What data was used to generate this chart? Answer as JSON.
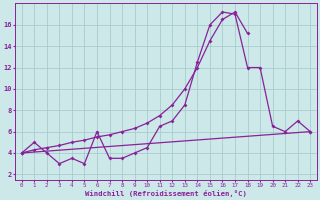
{
  "xlabel": "Windchill (Refroidissement éolien,°C)",
  "background_color": "#cce8e8",
  "grid_color": "#aacccc",
  "line_color": "#882299",
  "xlim": [
    -0.5,
    23.5
  ],
  "ylim": [
    1.5,
    18.0
  ],
  "yticks": [
    2,
    4,
    6,
    8,
    10,
    12,
    14,
    16
  ],
  "xticks": [
    0,
    1,
    2,
    3,
    4,
    5,
    6,
    7,
    8,
    9,
    10,
    11,
    12,
    13,
    14,
    15,
    16,
    17,
    18,
    19,
    20,
    21,
    22,
    23
  ],
  "line1_x": [
    0,
    1,
    2,
    3,
    4,
    5,
    6,
    7,
    8,
    9,
    10,
    11,
    12,
    13,
    14,
    15,
    16,
    17,
    18,
    19,
    20,
    21,
    22,
    23
  ],
  "line1_y": [
    4.0,
    5.0,
    4.0,
    3.0,
    3.5,
    3.0,
    6.0,
    3.5,
    3.5,
    4.0,
    4.5,
    6.5,
    7.0,
    8.5,
    12.5,
    16.0,
    17.2,
    17.0,
    12.0,
    12.0,
    6.5,
    6.0,
    7.0,
    6.0
  ],
  "line2_x": [
    0,
    1,
    2,
    3,
    4,
    5,
    6,
    7,
    8,
    9,
    10,
    11,
    12,
    13,
    14,
    15,
    16,
    17,
    18,
    19,
    20,
    21,
    22,
    23
  ],
  "line2_y": [
    4.0,
    4.3,
    4.5,
    4.7,
    5.0,
    5.2,
    5.5,
    5.7,
    6.0,
    6.3,
    6.8,
    7.5,
    8.5,
    10.0,
    12.0,
    14.5,
    16.5,
    17.2,
    15.2,
    null,
    null,
    null,
    null,
    null
  ],
  "line3_x": [
    0,
    23
  ],
  "line3_y": [
    4.0,
    6.0
  ]
}
